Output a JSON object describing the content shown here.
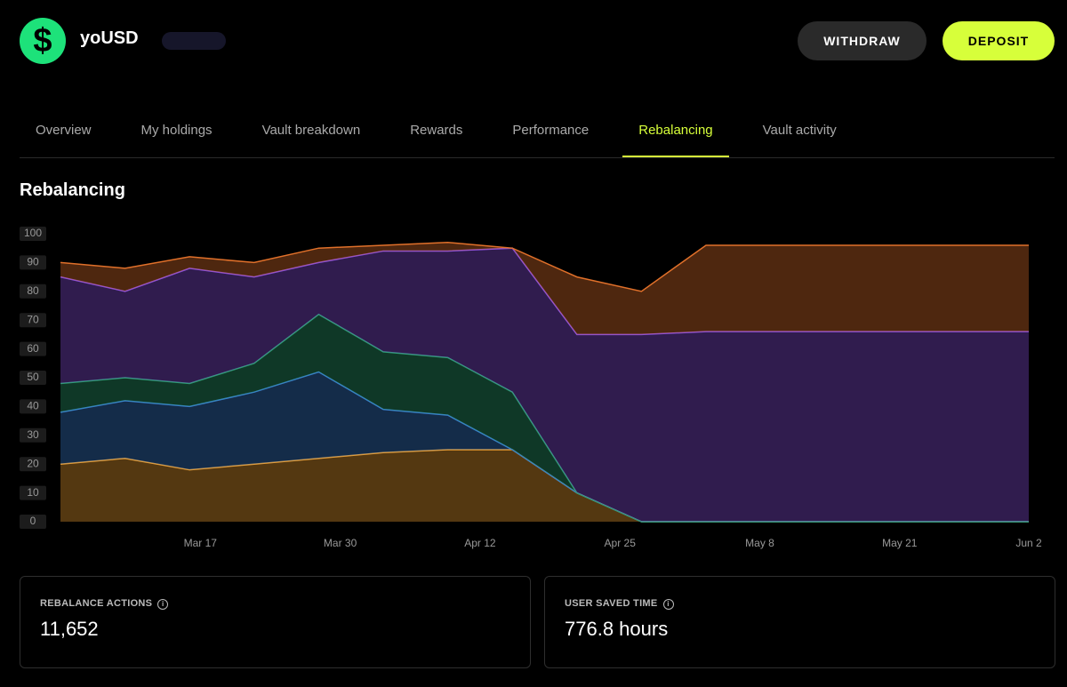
{
  "header": {
    "name": "yoUSD",
    "buttons": [
      "WITHDRAW",
      "DEPOSIT"
    ]
  },
  "tabs": [
    "Overview",
    "My holdings",
    "Vault breakdown",
    "Rewards",
    "Performance",
    "Rebalancing",
    "Vault activity"
  ],
  "active_tab": 5,
  "section_title": "Rebalancing",
  "chart_data": {
    "type": "stacked-area",
    "x": [
      "Mar 4",
      "Mar 10",
      "Mar 16",
      "Mar 22",
      "Mar 28",
      "Apr 3",
      "Apr 9",
      "Apr 15",
      "Apr 21",
      "Apr 27",
      "May 3",
      "May 9",
      "May 15",
      "May 21",
      "May 27",
      "Jun 2"
    ],
    "xlim": [
      "Mar 4",
      "Jun 2"
    ],
    "xticks": [
      "Mar 17",
      "Mar 30",
      "Apr 12",
      "Apr 25",
      "May 8",
      "May 21",
      "Jun 2"
    ],
    "ylim": [
      0,
      100
    ],
    "yticks": [
      0,
      10,
      20,
      30,
      40,
      50,
      60,
      70,
      80,
      90,
      100
    ],
    "grid": false,
    "series": [
      {
        "color": "#f0a030",
        "values": [
          20,
          22,
          18,
          20,
          22,
          24,
          25,
          25,
          10,
          0,
          0,
          0,
          0,
          0,
          0,
          0
        ]
      },
      {
        "color": "#3a7fd0",
        "values": [
          18,
          20,
          22,
          25,
          30,
          15,
          12,
          0,
          0,
          0,
          0,
          0,
          0,
          0,
          0,
          0
        ]
      },
      {
        "color": "#2aa070",
        "values": [
          10,
          8,
          8,
          10,
          20,
          20,
          20,
          20,
          0,
          0,
          0,
          0,
          0,
          0,
          0,
          0
        ]
      },
      {
        "color": "#8a50e0",
        "values": [
          37,
          30,
          40,
          30,
          18,
          35,
          37,
          50,
          55,
          65,
          66,
          66,
          66,
          66,
          66,
          66
        ]
      },
      {
        "color": "#e0702a",
        "values": [
          5,
          8,
          4,
          5,
          5,
          2,
          3,
          0,
          20,
          15,
          30,
          30,
          30,
          30,
          30,
          30
        ]
      }
    ]
  },
  "stats": [
    {
      "label": "REBALANCE ACTIONS",
      "value": "11,652"
    },
    {
      "label": "USER SAVED TIME",
      "value": "776.8 hours"
    }
  ]
}
